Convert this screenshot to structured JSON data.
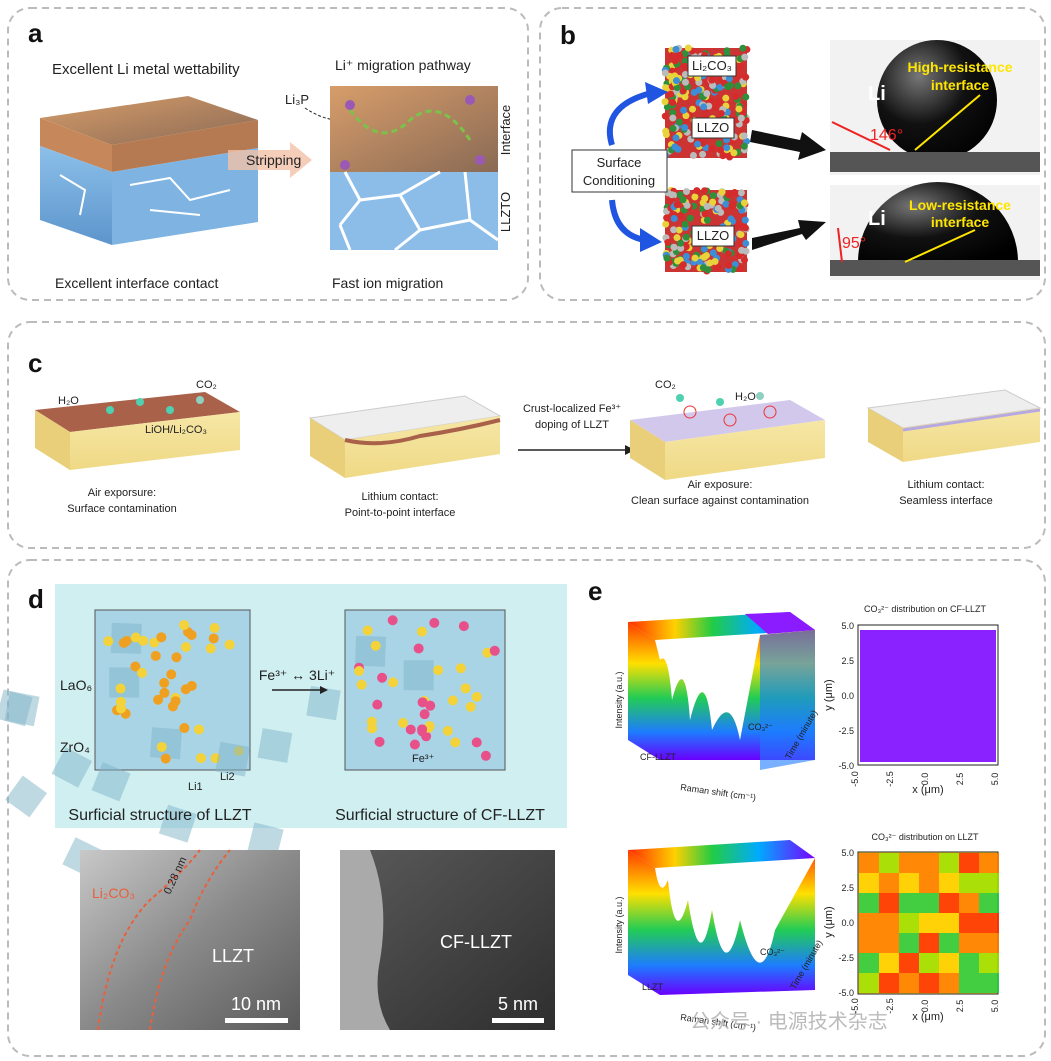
{
  "panel_a": {
    "label": "a",
    "heading_left": "Excellent Li metal wettability",
    "heading_right": "Li⁺ migration pathway",
    "li3p": "Li₃P",
    "arrow": "Stripping",
    "layer_top": "Interface",
    "layer_bottom": "LLZTO",
    "caption_left": "Excellent interface contact",
    "caption_right": "Fast ion migration"
  },
  "panel_b": {
    "label": "b",
    "surface_layer": "Li₂CO₃",
    "bulk_top": "LLZO",
    "bulk_bottom": "LLZO",
    "process": [
      "Surface",
      "Conditioning"
    ],
    "drop_top": {
      "metal": "Li",
      "note": [
        "High-resistance",
        "interface"
      ],
      "angle": "146°"
    },
    "drop_bottom": {
      "metal": "Li",
      "note": [
        "Low-resistance",
        "interface"
      ],
      "angle": "95°"
    }
  },
  "panel_c": {
    "label": "c",
    "gas_1": "H₂O",
    "gas_2": "CO₂",
    "deposit": "LiOH/Li₂CO₃",
    "step_1": [
      "Air exporsure:",
      "Surface contamination"
    ],
    "step_2": [
      "Lithium contact:",
      "Point-to-point interface"
    ],
    "process": [
      "Crust-localized Fe³⁺",
      "doping of LLZT"
    ],
    "gas_3": "CO₂",
    "gas_4": "H₂O",
    "step_3": [
      "Air exposure:",
      "Clean surface against contamination"
    ],
    "step_4": [
      "Lithium contact:",
      "Seamless interface"
    ]
  },
  "panel_d": {
    "label": "d",
    "polyhedron_1": "LaO₆",
    "polyhedron_2": "ZrO₄",
    "site_1": "Li1",
    "site_2": "Li2",
    "reaction": "Fe³⁺ ↔ 3Li⁺",
    "dopant": "Fe³⁺",
    "caption_left": "Surficial structure of LLZT",
    "caption_right": "Surficial structure of CF-LLZT",
    "tem_left": {
      "layer": "Li₂CO₃",
      "spacing": "0.28 nm",
      "phase": "LLZT",
      "scale": "10 nm"
    },
    "tem_right": {
      "phase": "CF-LLZT",
      "scale": "5 nm"
    }
  },
  "panel_e": {
    "label": "e",
    "raman_top": {
      "sample": "CF-LLZT",
      "peak": "CO₃²⁻",
      "y_label": "Intensity (a.u.)",
      "x_label": "Raman shift (cm⁻¹)",
      "z_label": "Time (minute)"
    },
    "raman_bottom": {
      "sample": "LLZT",
      "peak": "CO₃²⁻",
      "y_label": "Intensity (a.u.)",
      "x_label": "Raman shift (cm⁻¹)",
      "z_label": "Time (minute)"
    },
    "map_top": {
      "title": "CO₃²⁻ distribution on CF-LLZT",
      "x_label": "x (μm)",
      "y_label": "y (μm)",
      "xticks": [
        "-5.0",
        "-2.5",
        "0.0",
        "2.5",
        "5.0"
      ],
      "yticks": [
        "5.0",
        "2.5",
        "0.0",
        "-2.5",
        "-5.0"
      ]
    },
    "map_bottom": {
      "title": "CO₃²⁻ distribution on LLZT",
      "x_label": "x (μm)",
      "y_label": "y (μm)",
      "xticks": [
        "-5.0",
        "-2.5",
        "0.0",
        "2.5",
        "5.0"
      ],
      "yticks": [
        "5.0",
        "2.5",
        "0.0",
        "-2.5",
        "-5.0"
      ]
    }
  },
  "watermark": "公众号 · 电源技术杂志"
}
